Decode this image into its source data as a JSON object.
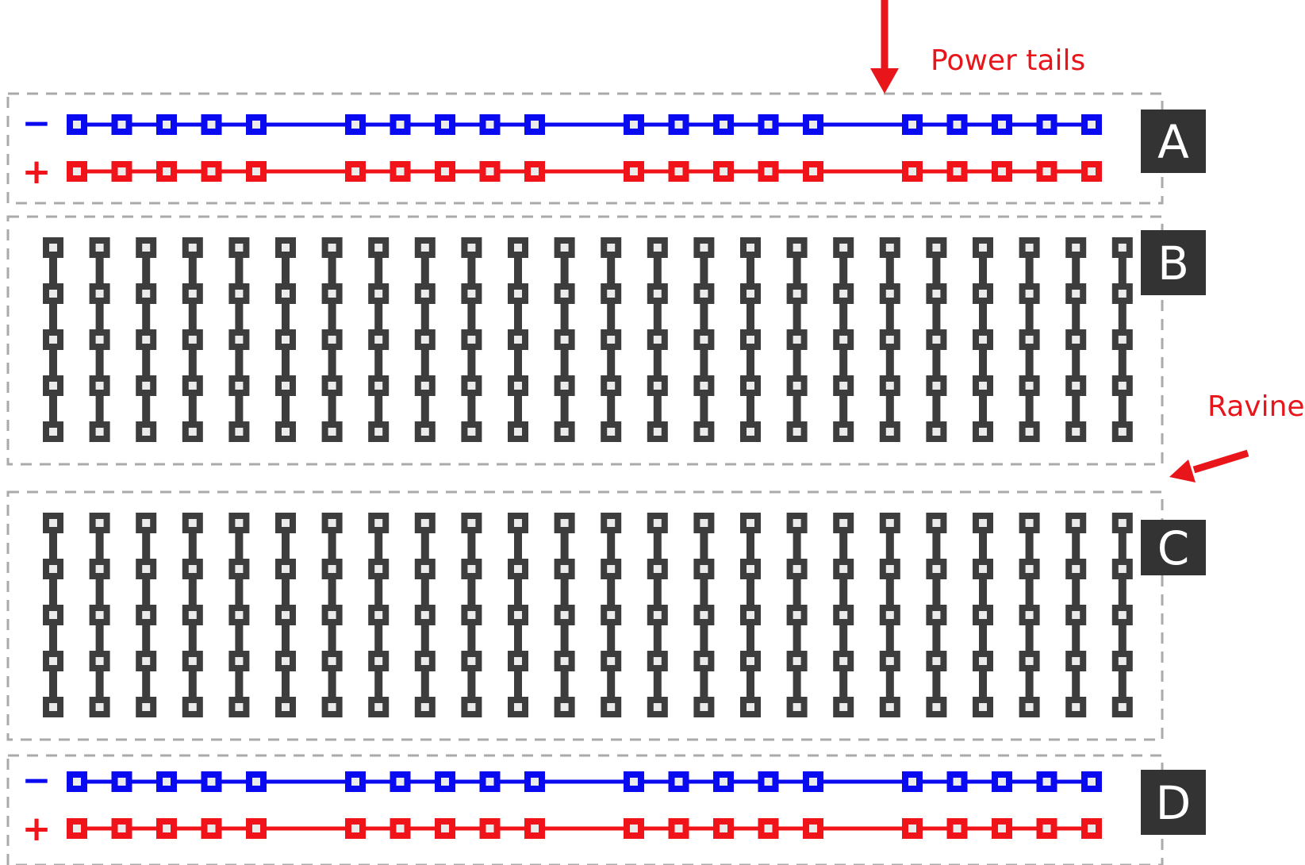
{
  "annotations": {
    "power_tails": "Power tails",
    "ravine": "Ravine",
    "color": "#e8151b"
  },
  "sections": [
    {
      "id": "A",
      "type": "power-rail"
    },
    {
      "id": "B",
      "type": "terminal-strip"
    },
    {
      "id": "C",
      "type": "terminal-strip"
    },
    {
      "id": "D",
      "type": "power-rail"
    }
  ],
  "rails": {
    "negative_sign": "−",
    "positive_sign": "+",
    "negative_color": "#0a0af0",
    "positive_color": "#f0141a",
    "groups": 4,
    "holes_per_group": 5
  },
  "terminal_strips": {
    "columns": 24,
    "holes_per_column": 5,
    "color": "#3d3d3d"
  },
  "colors": {
    "hole_fill": "#ebebeb",
    "dashed_border": "#aaaaaa",
    "label_bg": "#333333"
  }
}
